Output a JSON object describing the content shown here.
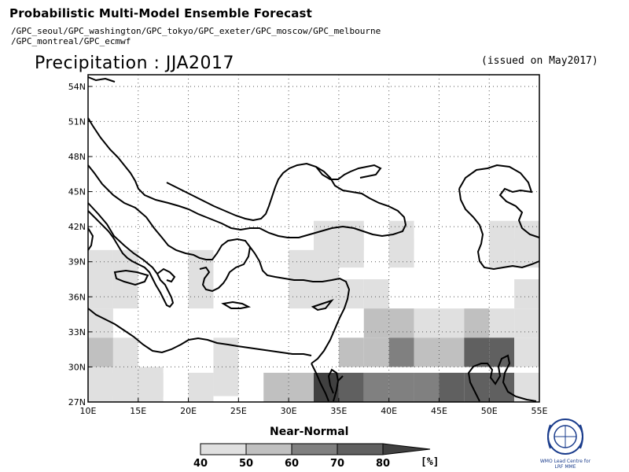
{
  "header": {
    "title": "Probabilistic Multi-Model Ensemble Forecast",
    "gpc_line1": "/GPC_seoul/GPC_washington/GPC_tokyo/GPC_exeter/GPC_moscow/GPC_melbourne",
    "gpc_line2": "/GPC_montreal/GPC_ecmwf",
    "main_title": "Precipitation : JJA2017",
    "issued": "(issued on May2017)"
  },
  "map": {
    "lon_range": [
      10,
      55
    ],
    "lat_range": [
      27,
      55
    ],
    "lon_ticks": [
      {
        "v": 10,
        "label": "10E"
      },
      {
        "v": 15,
        "label": "15E"
      },
      {
        "v": 20,
        "label": "20E"
      },
      {
        "v": 25,
        "label": "25E"
      },
      {
        "v": 30,
        "label": "30E"
      },
      {
        "v": 35,
        "label": "35E"
      },
      {
        "v": 40,
        "label": "40E"
      },
      {
        "v": 45,
        "label": "45E"
      },
      {
        "v": 50,
        "label": "50E"
      },
      {
        "v": 55,
        "label": "55E"
      }
    ],
    "lat_ticks": [
      {
        "v": 27,
        "label": "27N"
      },
      {
        "v": 30,
        "label": "30N"
      },
      {
        "v": 33,
        "label": "33N"
      },
      {
        "v": 36,
        "label": "36N"
      },
      {
        "v": 39,
        "label": "39N"
      },
      {
        "v": 42,
        "label": "42N"
      },
      {
        "v": 45,
        "label": "45N"
      },
      {
        "v": 48,
        "label": "48N"
      },
      {
        "v": 51,
        "label": "51N"
      },
      {
        "v": 54,
        "label": "54N"
      }
    ],
    "grid": true,
    "cell_size_deg": 2.5,
    "colors": [
      "#e0e0e0",
      "#c0c0c0",
      "#808080",
      "#606060",
      "#404040"
    ],
    "cells": [
      {
        "lon": 10,
        "lat": 37.5,
        "c": 0
      },
      {
        "lon": 12.5,
        "lat": 37.5,
        "c": 0
      },
      {
        "lon": 10,
        "lat": 35,
        "c": 0
      },
      {
        "lon": 12.5,
        "lat": 35,
        "c": 0
      },
      {
        "lon": 10,
        "lat": 32.5,
        "c": 0
      },
      {
        "lon": 10,
        "lat": 30,
        "c": 1
      },
      {
        "lon": 12.5,
        "lat": 30,
        "c": 0
      },
      {
        "lon": 10,
        "lat": 27.5,
        "c": 0
      },
      {
        "lon": 12.5,
        "lat": 27.5,
        "c": 0
      },
      {
        "lon": 15,
        "lat": 27.5,
        "c": 0
      },
      {
        "lon": 10,
        "lat": 27,
        "c": 0
      },
      {
        "lon": 12.5,
        "lat": 27,
        "c": 0
      },
      {
        "lon": 15,
        "lat": 27,
        "c": 0
      },
      {
        "lon": 20,
        "lat": 37.5,
        "c": 0
      },
      {
        "lon": 20,
        "lat": 35,
        "c": 0
      },
      {
        "lon": 22.5,
        "lat": 30,
        "c": 0
      },
      {
        "lon": 22.5,
        "lat": 27.5,
        "c": 0
      },
      {
        "lon": 20,
        "lat": 27,
        "c": 0
      },
      {
        "lon": 27.5,
        "lat": 27,
        "c": 1
      },
      {
        "lon": 30,
        "lat": 27,
        "c": 1
      },
      {
        "lon": 30,
        "lat": 37.5,
        "c": 0
      },
      {
        "lon": 32.5,
        "lat": 37.5,
        "c": 0
      },
      {
        "lon": 30,
        "lat": 35,
        "c": 0
      },
      {
        "lon": 32.5,
        "lat": 35,
        "c": 0
      },
      {
        "lon": 35,
        "lat": 35,
        "c": 0
      },
      {
        "lon": 32.5,
        "lat": 40,
        "c": 0
      },
      {
        "lon": 35,
        "lat": 40,
        "c": 0
      },
      {
        "lon": 32.5,
        "lat": 38.5,
        "c": 0
      },
      {
        "lon": 35,
        "lat": 38.5,
        "c": 0
      },
      {
        "lon": 37.5,
        "lat": 35,
        "c": 0
      },
      {
        "lon": 40,
        "lat": 40,
        "c": 0
      },
      {
        "lon": 40,
        "lat": 38.5,
        "c": 0
      },
      {
        "lon": 37.5,
        "lat": 32.5,
        "c": 1
      },
      {
        "lon": 40,
        "lat": 32.5,
        "c": 1
      },
      {
        "lon": 42.5,
        "lat": 32.5,
        "c": 0
      },
      {
        "lon": 45,
        "lat": 32.5,
        "c": 0
      },
      {
        "lon": 47.5,
        "lat": 32.5,
        "c": 1
      },
      {
        "lon": 50,
        "lat": 32.5,
        "c": 0
      },
      {
        "lon": 52.5,
        "lat": 32.5,
        "c": 0
      },
      {
        "lon": 35,
        "lat": 30,
        "c": 1
      },
      {
        "lon": 37.5,
        "lat": 30,
        "c": 1
      },
      {
        "lon": 40,
        "lat": 30,
        "c": 2
      },
      {
        "lon": 42.5,
        "lat": 30,
        "c": 1
      },
      {
        "lon": 45,
        "lat": 30,
        "c": 1
      },
      {
        "lon": 47.5,
        "lat": 30,
        "c": 3
      },
      {
        "lon": 50,
        "lat": 30,
        "c": 3
      },
      {
        "lon": 52.5,
        "lat": 30,
        "c": 0
      },
      {
        "lon": 32.5,
        "lat": 27,
        "c": 4
      },
      {
        "lon": 35,
        "lat": 27,
        "c": 3
      },
      {
        "lon": 37.5,
        "lat": 27,
        "c": 2
      },
      {
        "lon": 40,
        "lat": 27,
        "c": 2
      },
      {
        "lon": 42.5,
        "lat": 27,
        "c": 2
      },
      {
        "lon": 45,
        "lat": 27,
        "c": 3
      },
      {
        "lon": 47.5,
        "lat": 27,
        "c": 3
      },
      {
        "lon": 50,
        "lat": 27,
        "c": 3
      },
      {
        "lon": 52.5,
        "lat": 27,
        "c": 0
      },
      {
        "lon": 52.5,
        "lat": 35,
        "c": 0
      },
      {
        "lon": 50,
        "lat": 40,
        "c": 0
      },
      {
        "lon": 52.5,
        "lat": 40,
        "c": 0
      },
      {
        "lon": 50,
        "lat": 38.5,
        "c": 0
      },
      {
        "lon": 52.5,
        "lat": 38.5,
        "c": 0
      }
    ]
  },
  "legend": {
    "title": "Near-Normal",
    "labels": [
      "40",
      "50",
      "60",
      "70",
      "80"
    ],
    "unit": "[%]"
  },
  "logo": {
    "text": "WMO Lead Centre for LRF MME"
  }
}
